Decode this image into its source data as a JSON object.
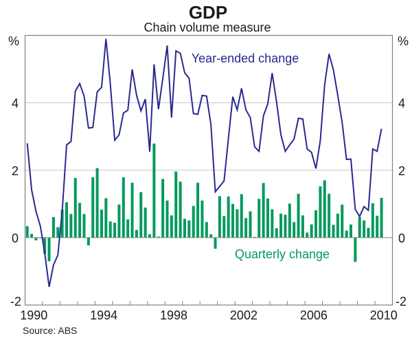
{
  "chart_data": {
    "type": "bar+line",
    "title": "GDP",
    "subtitle": "Chain volume measure",
    "source": "Source: ABS",
    "ylabel_left": "%",
    "ylabel_right": "%",
    "ylim": [
      -2,
      6
    ],
    "yticks": [
      -2,
      0,
      2,
      4
    ],
    "ytick_labels": [
      "-2",
      "0",
      "2",
      "4"
    ],
    "xlim": [
      1990,
      2011
    ],
    "xtick_labels": [
      "1990",
      "1994",
      "1998",
      "2002",
      "2006",
      "2010"
    ],
    "xtick_label_years": [
      1990,
      1994,
      1998,
      2002,
      2006,
      2010
    ],
    "grid": "horizontal",
    "start_period": "1990 Q1",
    "frequency": "quarterly",
    "series": [
      {
        "name": "Quarterly change",
        "type": "bar",
        "color": "#009a5b",
        "label_position": "lower-right",
        "values": [
          0.34,
          0.11,
          -0.08,
          -0.02,
          -0.48,
          -0.7,
          0.61,
          0.31,
          0.83,
          1.05,
          0.7,
          1.77,
          1.03,
          0.7,
          -0.23,
          1.79,
          2.06,
          0.83,
          1.17,
          0.48,
          0.44,
          0.98,
          1.79,
          0.54,
          1.63,
          0.23,
          1.35,
          0.89,
          0.1,
          2.79,
          0.03,
          1.74,
          1.1,
          0.66,
          1.96,
          1.66,
          0.56,
          0.51,
          0.94,
          1.63,
          1.1,
          0.46,
          0.1,
          -0.33,
          1.23,
          0.64,
          1.22,
          1.0,
          0.84,
          1.29,
          0.58,
          0.78,
          0.02,
          1.15,
          1.62,
          1.16,
          0.84,
          0.28,
          0.71,
          0.68,
          1.01,
          0.46,
          1.3,
          0.66,
          0.15,
          0.39,
          0.81,
          1.52,
          1.7,
          1.3,
          0.38,
          0.71,
          0.98,
          0.21,
          0.39,
          -0.72,
          0.61,
          0.51,
          0.29,
          1.02,
          0.65,
          1.18
        ]
      },
      {
        "name": "Year-ended change",
        "type": "line",
        "color": "#27288f",
        "label_position": "top-center",
        "values": [
          2.8,
          1.42,
          0.78,
          0.34,
          -0.46,
          -1.46,
          -0.81,
          -0.52,
          0.81,
          2.75,
          2.85,
          4.35,
          4.57,
          4.2,
          3.25,
          3.27,
          4.33,
          4.46,
          5.9,
          4.55,
          2.89,
          3.05,
          3.7,
          3.78,
          4.99,
          4.22,
          3.76,
          4.11,
          2.55,
          5.14,
          3.81,
          4.72,
          5.7,
          3.56,
          5.54,
          5.47,
          4.89,
          4.73,
          3.68,
          3.66,
          4.22,
          4.2,
          3.35,
          1.36,
          1.52,
          1.68,
          2.95,
          4.18,
          3.79,
          4.43,
          3.79,
          3.56,
          2.69,
          2.56,
          3.61,
          3.97,
          4.88,
          4.03,
          3.05,
          2.56,
          2.75,
          2.92,
          3.54,
          3.52,
          2.63,
          2.53,
          2.05,
          2.87,
          4.53,
          5.45,
          4.98,
          4.22,
          3.42,
          2.32,
          2.33,
          0.84,
          0.63,
          0.92,
          0.81,
          2.63,
          2.56,
          3.23
        ]
      }
    ]
  },
  "colors": {
    "frame": "#808080",
    "grid": "#c8c8c8",
    "text": "#1a1a1a"
  }
}
